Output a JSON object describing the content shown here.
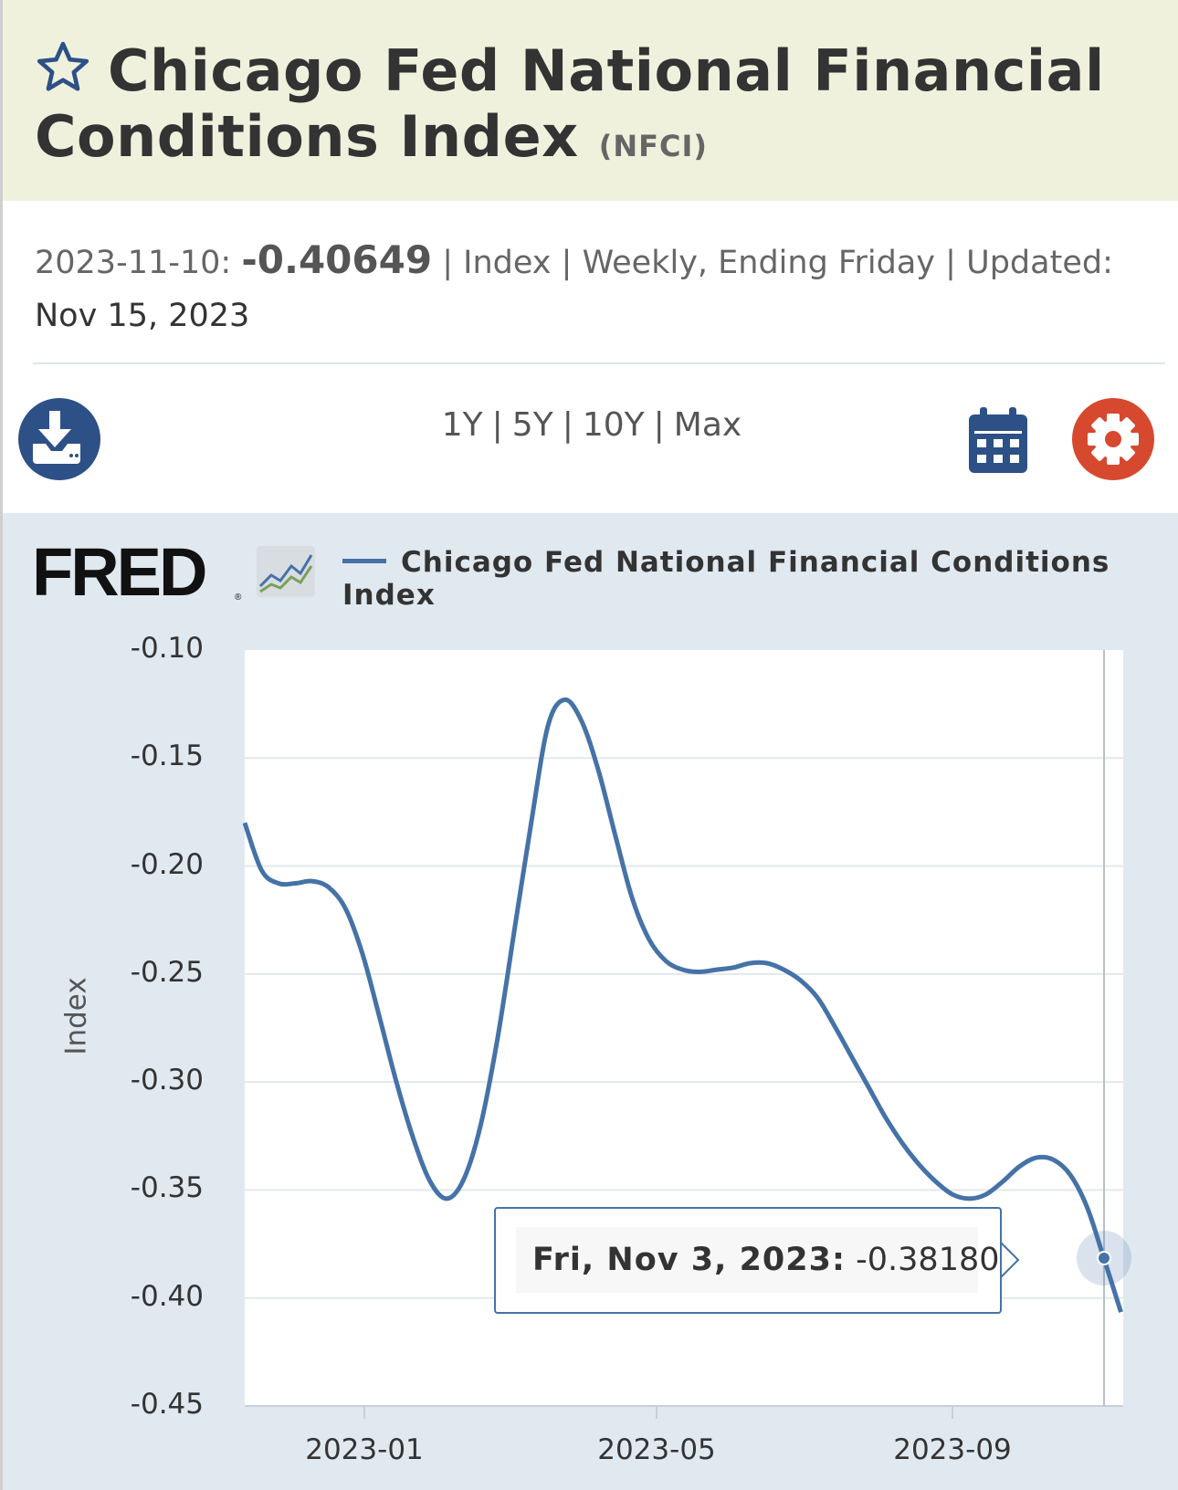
{
  "header": {
    "title": "Chicago Fed National Financial Conditions Index",
    "ticker": "(NFCI)"
  },
  "meta": {
    "date": "2023-11-10:",
    "value": "-0.40649",
    "sep1": "|",
    "units": "Index",
    "sep2": "|",
    "frequency": "Weekly, Ending Friday",
    "sep3": "|",
    "updated_label": "Updated:",
    "updated_date": "Nov 15, 2023"
  },
  "toolbar": {
    "ranges": [
      "1Y",
      "5Y",
      "10Y",
      "Max"
    ]
  },
  "icons": {
    "star": "star-icon",
    "download": "download-icon",
    "calendar": "calendar-icon",
    "settings": "gear-icon"
  },
  "colors": {
    "series": "#4572a7",
    "download_button": "#2d5086",
    "settings_button": "#d6492f",
    "title_band": "#f0f1dd",
    "chart_panel": "#e1e9f0"
  },
  "chart_data": {
    "type": "line",
    "legend": [
      "Chicago Fed National Financial Conditions Index"
    ],
    "ylabel": "Index",
    "ylim": [
      -0.45,
      -0.1
    ],
    "yticks": [
      "-0.10",
      "-0.15",
      "-0.20",
      "-0.25",
      "-0.30",
      "-0.35",
      "-0.40",
      "-0.45"
    ],
    "xticks": [
      "2023-01",
      "2023-05",
      "2023-09"
    ],
    "grid": true,
    "series": [
      {
        "values": [
          -0.18,
          -0.202,
          -0.208,
          -0.208,
          -0.207,
          -0.21,
          -0.22,
          -0.241,
          -0.27,
          -0.3,
          -0.326,
          -0.346,
          -0.354,
          -0.345,
          -0.32,
          -0.28,
          -0.23,
          -0.18,
          -0.135,
          -0.123,
          -0.133,
          -0.156,
          -0.186,
          -0.215,
          -0.234,
          -0.244,
          -0.248,
          -0.249,
          -0.248,
          -0.247,
          -0.245,
          -0.245,
          -0.248,
          -0.253,
          -0.261,
          -0.274,
          -0.288,
          -0.302,
          -0.316,
          -0.328,
          -0.338,
          -0.346,
          -0.352,
          -0.354,
          -0.352,
          -0.346,
          -0.339,
          -0.335,
          -0.336,
          -0.343,
          -0.358,
          -0.3818,
          -0.40649
        ]
      }
    ],
    "hover": {
      "label": "Fri, Nov 3, 2023:",
      "value": "-0.38180"
    }
  }
}
